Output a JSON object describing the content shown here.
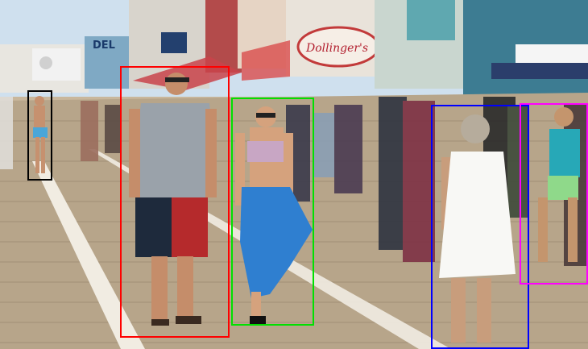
{
  "signs": {
    "store_sign": "Dollinger's",
    "left_sign": "DEL"
  },
  "colors": {
    "red": "#ff0000",
    "green": "#00e000",
    "blue": "#0000ff",
    "magenta": "#ff00ff",
    "black": "#000000"
  },
  "detections": [
    {
      "name": "person-man-gray-shirt",
      "color": "red"
    },
    {
      "name": "person-woman-blue-sarong",
      "color": "green"
    },
    {
      "name": "person-woman-white-dress",
      "color": "blue"
    },
    {
      "name": "person-woman-teal-top",
      "color": "magenta"
    },
    {
      "name": "person-distant-blue-shorts",
      "color": "black"
    }
  ]
}
